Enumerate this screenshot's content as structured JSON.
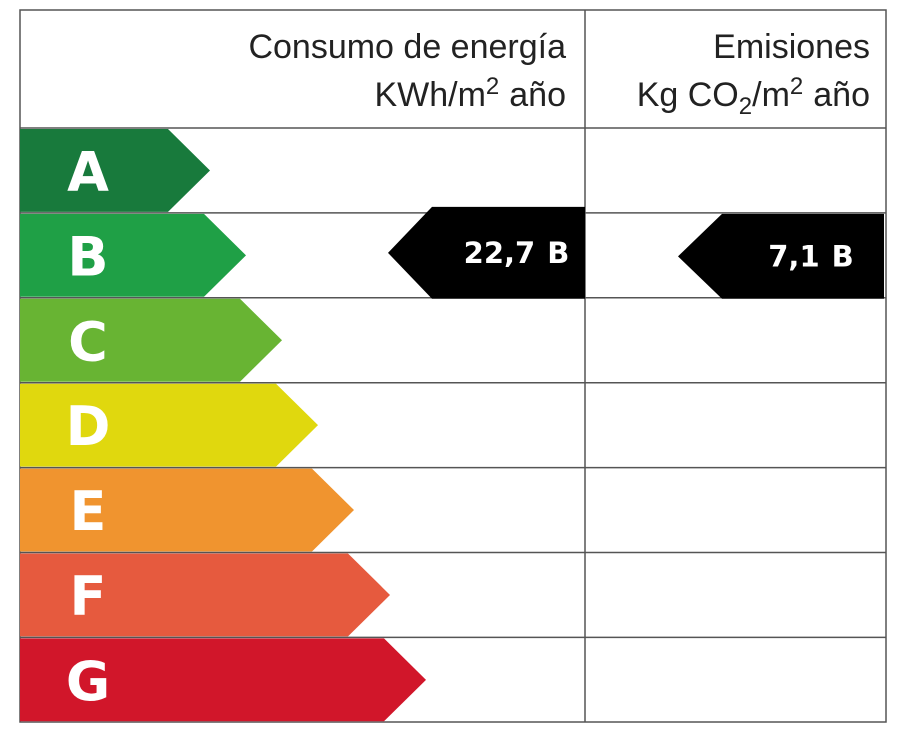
{
  "header": {
    "energy": {
      "title": "Consumo de energía",
      "unit": {
        "base": "KWh/m",
        "sup": "2",
        "rest": "año"
      }
    },
    "emissions": {
      "title": "Emisiones",
      "unit": {
        "a": "Kg CO",
        "sub": "2",
        "b": "/m",
        "sup": "2",
        "c": "año"
      }
    }
  },
  "ratings": [
    {
      "letter": "A",
      "color": "#187a3c"
    },
    {
      "letter": "B",
      "color": "#1fa046"
    },
    {
      "letter": "C",
      "color": "#68b433"
    },
    {
      "letter": "D",
      "color": "#e0d80e"
    },
    {
      "letter": "E",
      "color": "#f0942f"
    },
    {
      "letter": "F",
      "color": "#e65a3e"
    },
    {
      "letter": "G",
      "color": "#d1162a"
    }
  ],
  "energy_rating": {
    "value": "22,7",
    "class": "B"
  },
  "emissions_rating": {
    "value": "7,1",
    "class": "B"
  }
}
